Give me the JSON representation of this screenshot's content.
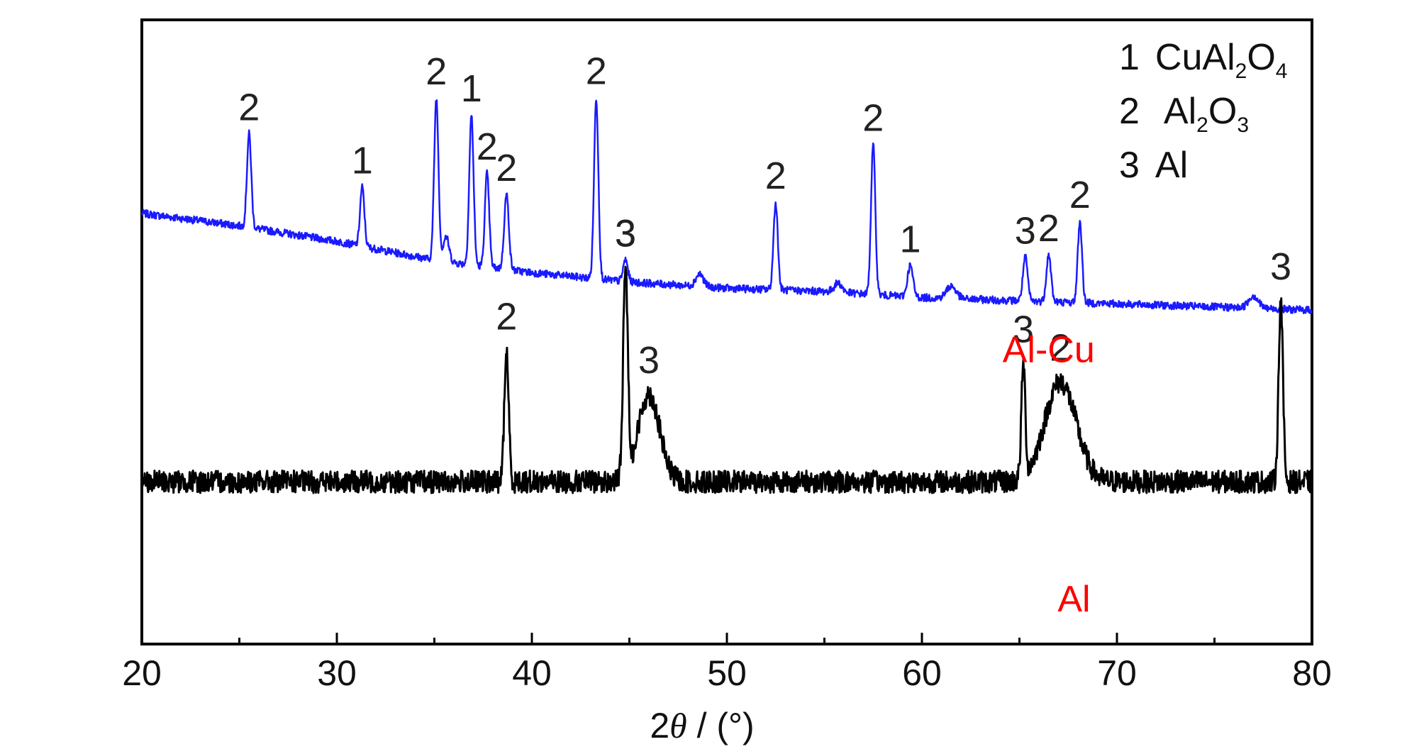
{
  "chart_data": {
    "type": "line",
    "xlabel": "2θ / (°)",
    "xlabel_parts": {
      "symbol": "2",
      "theta": "θ",
      "rest": " / (°)"
    },
    "xlim": [
      20,
      80
    ],
    "xticks": [
      20,
      30,
      40,
      50,
      60,
      70,
      80
    ],
    "xtick_labels": [
      "20",
      "30",
      "40",
      "50",
      "60",
      "70",
      "80"
    ],
    "yticks_shown": false,
    "grid": false,
    "legend": {
      "placement": "top-right",
      "entries": [
        {
          "key": "1",
          "name": "CuAl",
          "sub1": "2",
          "mid": "O",
          "sub2": "4"
        },
        {
          "key": "2",
          "name": "Al",
          "sub1": "2",
          "mid": "O",
          "sub2": "3"
        },
        {
          "key": "3",
          "name": "Al",
          "sub1": "",
          "mid": "",
          "sub2": ""
        }
      ]
    },
    "series": [
      {
        "name": "Al-Cu",
        "color": "#1a1aff",
        "label_color": "#ff0000",
        "label_x": 66.5,
        "baseline": [
          [
            20,
            0.69
          ],
          [
            25,
            0.67
          ],
          [
            30,
            0.645
          ],
          [
            35,
            0.615
          ],
          [
            40,
            0.595
          ],
          [
            45,
            0.58
          ],
          [
            50,
            0.57
          ],
          [
            55,
            0.565
          ],
          [
            60,
            0.555
          ],
          [
            65,
            0.55
          ],
          [
            70,
            0.545
          ],
          [
            75,
            0.54
          ],
          [
            80,
            0.535
          ]
        ],
        "noise": 0.006,
        "peaks": [
          {
            "x": 25.5,
            "h": 0.15,
            "w": 0.11,
            "label": "2"
          },
          {
            "x": 31.3,
            "h": 0.095,
            "w": 0.11,
            "label": "1"
          },
          {
            "x": 35.1,
            "h": 0.26,
            "w": 0.11,
            "label": "2"
          },
          {
            "x": 35.6,
            "h": 0.04,
            "w": 0.15,
            "label": ""
          },
          {
            "x": 36.9,
            "h": 0.24,
            "w": 0.11,
            "label": "1"
          },
          {
            "x": 37.7,
            "h": 0.15,
            "w": 0.11,
            "label": "2"
          },
          {
            "x": 38.7,
            "h": 0.12,
            "w": 0.12,
            "label": "2"
          },
          {
            "x": 43.3,
            "h": 0.29,
            "w": 0.11,
            "label": "2"
          },
          {
            "x": 44.8,
            "h": 0.035,
            "w": 0.12,
            "label": "3"
          },
          {
            "x": 48.6,
            "h": 0.02,
            "w": 0.2,
            "label": ""
          },
          {
            "x": 52.5,
            "h": 0.14,
            "w": 0.11,
            "label": "2"
          },
          {
            "x": 55.7,
            "h": 0.015,
            "w": 0.2,
            "label": ""
          },
          {
            "x": 57.5,
            "h": 0.24,
            "w": 0.11,
            "label": "2"
          },
          {
            "x": 59.4,
            "h": 0.05,
            "w": 0.14,
            "label": "1"
          },
          {
            "x": 61.5,
            "h": 0.02,
            "w": 0.25,
            "label": ""
          },
          {
            "x": 65.3,
            "h": 0.07,
            "w": 0.12,
            "label": "3"
          },
          {
            "x": 66.5,
            "h": 0.075,
            "w": 0.12,
            "label": "2"
          },
          {
            "x": 68.1,
            "h": 0.13,
            "w": 0.11,
            "label": "2"
          },
          {
            "x": 77.0,
            "h": 0.02,
            "w": 0.25,
            "label": ""
          }
        ]
      },
      {
        "name": "Al",
        "color": "#000000",
        "label_color": "#ff0000",
        "label_x": 67.8,
        "baseline": [
          [
            20,
            0.26
          ],
          [
            30,
            0.26
          ],
          [
            40,
            0.26
          ],
          [
            50,
            0.26
          ],
          [
            60,
            0.26
          ],
          [
            70,
            0.26
          ],
          [
            80,
            0.26
          ]
        ],
        "noise": 0.018,
        "peaks": [
          {
            "x": 38.7,
            "h": 0.21,
            "w": 0.11,
            "label": "2"
          },
          {
            "x": 44.8,
            "h": 0.33,
            "w": 0.12,
            "label": "3"
          },
          {
            "x": 46.0,
            "h": 0.14,
            "w": 0.55,
            "label": "3"
          },
          {
            "x": 65.2,
            "h": 0.18,
            "w": 0.1,
            "label": "3"
          },
          {
            "x": 67.1,
            "h": 0.16,
            "w": 0.8,
            "label": "2"
          },
          {
            "x": 78.4,
            "h": 0.29,
            "w": 0.11,
            "label": "3"
          }
        ]
      }
    ]
  }
}
